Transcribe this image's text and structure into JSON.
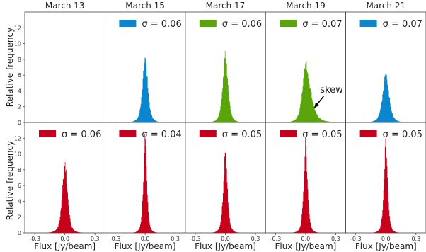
{
  "figure": {
    "ylabel": "Relative frequency",
    "xlabel": "Flux [Jy/beam]"
  },
  "chart_data": {
    "type": "histogram-grid",
    "columns": [
      "March 13",
      "March 15",
      "March 17",
      "March 19",
      "March 21"
    ],
    "xlim": [
      -0.4,
      0.4
    ],
    "xticks": [
      "-0.3",
      "0.0",
      "0.3"
    ],
    "top_row": {
      "ylim": [
        0,
        14
      ],
      "yticks": [
        "0",
        "2",
        "4",
        "6",
        "8",
        "10",
        "12"
      ],
      "panels": [
        {
          "date": "March 13",
          "empty": true,
          "legend": "",
          "color": "",
          "peak": 0,
          "sigma": 0,
          "skew": 0
        },
        {
          "date": "March 15",
          "legend": "σ = 0.06",
          "color": "#0a86cf",
          "peak": 9.0,
          "sigma": 0.045,
          "skew": 0
        },
        {
          "date": "March 17",
          "legend": "σ = 0.06",
          "color": "#5aa60a",
          "peak": 9.0,
          "sigma": 0.045,
          "skew": 0
        },
        {
          "date": "March 19",
          "legend": "σ = 0.07",
          "color": "#5aa60a",
          "peak": 7.8,
          "sigma": 0.055,
          "skew": 0.35
        },
        {
          "date": "March 21",
          "legend": "σ = 0.07",
          "color": "#0a86cf",
          "peak": 6.5,
          "sigma": 0.055,
          "skew": 0
        }
      ]
    },
    "bottom_row": {
      "ylim": [
        0,
        14
      ],
      "yticks": [
        "0",
        "2",
        "4",
        "6",
        "8",
        "10",
        "12"
      ],
      "panels": [
        {
          "legend": "σ = 0.06",
          "color": "#c8001c",
          "peak": 9.5,
          "sigma": 0.045
        },
        {
          "legend": "σ = 0.04",
          "color": "#c8001c",
          "peak": 13.0,
          "sigma": 0.03
        },
        {
          "legend": "σ = 0.05",
          "color": "#c8001c",
          "peak": 11.0,
          "sigma": 0.035
        },
        {
          "legend": "σ = 0.05",
          "color": "#c8001c",
          "peak": 12.0,
          "sigma": 0.033
        },
        {
          "legend": "σ = 0.05",
          "color": "#c8001c",
          "peak": 12.5,
          "sigma": 0.032
        }
      ]
    },
    "annotation": {
      "text": "skew",
      "panel": "March 19",
      "row": "top"
    }
  }
}
